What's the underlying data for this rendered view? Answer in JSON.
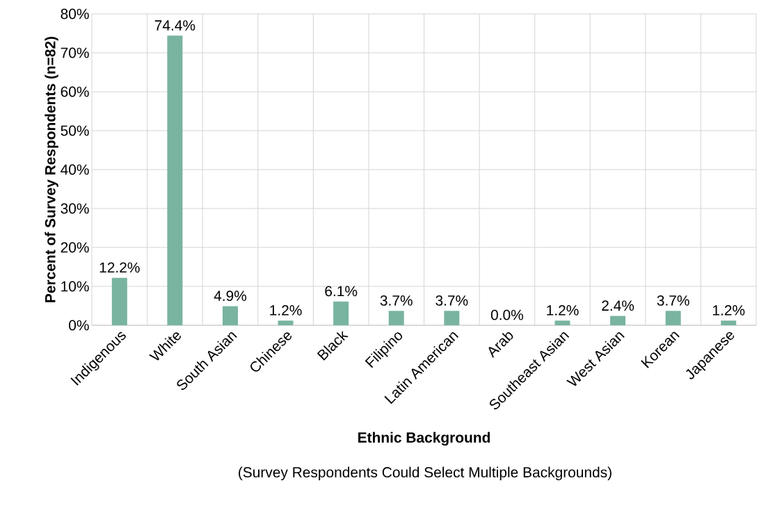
{
  "chart_data": {
    "type": "bar",
    "xlabel": "Ethnic Background",
    "ylabel": "Percent of Survey Respondents (n=82)",
    "annotations": [
      "(Survey Respondents Could Select Multiple Backgrounds)"
    ],
    "categories": [
      "Indigenous",
      "White",
      "South Asian",
      "Chinese",
      "Black",
      "Filipino",
      "Latin American",
      "Arab",
      "Southeast Asian",
      "West Asian",
      "Korean",
      "Japanese"
    ],
    "values": [
      12.2,
      74.4,
      4.9,
      1.2,
      6.1,
      3.7,
      3.7,
      0.0,
      1.2,
      2.4,
      3.7,
      1.2
    ],
    "value_labels": [
      "12.2%",
      "74.4%",
      "4.9%",
      "1.2%",
      "6.1%",
      "3.7%",
      "3.7%",
      "0.0%",
      "1.2%",
      "2.4%",
      "3.7%",
      "1.2%"
    ],
    "color": "#79b4a0",
    "ylim": [
      0,
      80
    ],
    "yticks": [
      {
        "value": 0,
        "label": "0%"
      },
      {
        "value": 10,
        "label": "10%"
      },
      {
        "value": 20,
        "label": "20%"
      },
      {
        "value": 30,
        "label": "30%"
      },
      {
        "value": 40,
        "label": "40%"
      },
      {
        "value": 50,
        "label": "50%"
      },
      {
        "value": 60,
        "label": "60%"
      },
      {
        "value": 70,
        "label": "70%"
      },
      {
        "value": 80,
        "label": "80%"
      }
    ],
    "grid": true
  }
}
